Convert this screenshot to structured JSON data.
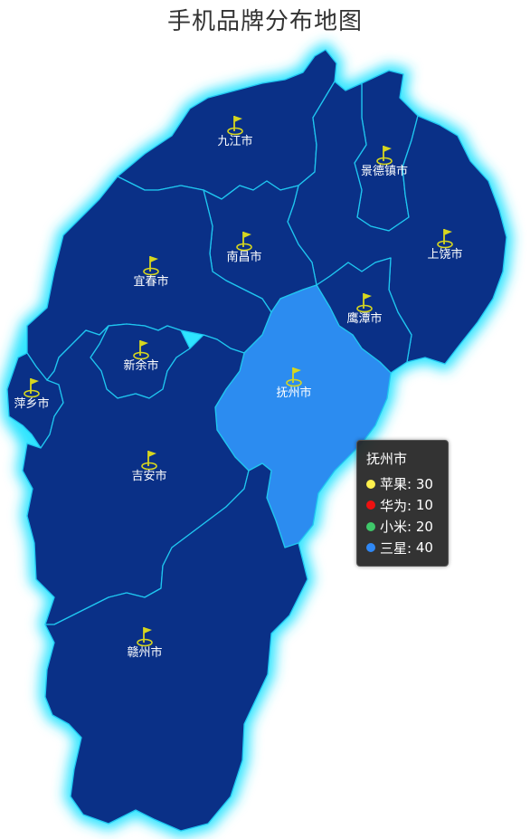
{
  "title": "手机品牌分布地图",
  "colors": {
    "region_fill": "#0a3087",
    "region_border": "#1fc6f0",
    "glow": "#2fe4ff",
    "highlight_fill": "#2c8cf0",
    "marker": "#d6d61f"
  },
  "cities": [
    {
      "key": "jiujiang",
      "name": "九江市",
      "icon": "flag-marker"
    },
    {
      "key": "jingdezhen",
      "name": "景德镇市",
      "icon": "flag-marker"
    },
    {
      "key": "shangrao",
      "name": "上饶市",
      "icon": "flag-marker"
    },
    {
      "key": "nanchang",
      "name": "南昌市",
      "icon": "flag-marker"
    },
    {
      "key": "yichun",
      "name": "宜春市",
      "icon": "flag-marker"
    },
    {
      "key": "yingtan",
      "name": "鹰潭市",
      "icon": "flag-marker"
    },
    {
      "key": "xinyu",
      "name": "新余市",
      "icon": "flag-marker"
    },
    {
      "key": "fuzhou",
      "name": "抚州市",
      "icon": "flag-marker",
      "highlighted": true
    },
    {
      "key": "pingxiang",
      "name": "萍乡市",
      "icon": "flag-marker"
    },
    {
      "key": "jian",
      "name": "吉安市",
      "icon": "flag-marker"
    },
    {
      "key": "ganzhou",
      "name": "赣州市",
      "icon": "flag-marker"
    }
  ],
  "tooltip": {
    "title": "抚州市",
    "items": [
      {
        "label": "苹果:",
        "value": "30",
        "color": "#fff14d"
      },
      {
        "label": "华为:",
        "value": "10",
        "color": "#ee1111"
      },
      {
        "label": "小米:",
        "value": "20",
        "color": "#3fc86a"
      },
      {
        "label": "三星:",
        "value": "40",
        "color": "#2f88f5"
      }
    ]
  }
}
